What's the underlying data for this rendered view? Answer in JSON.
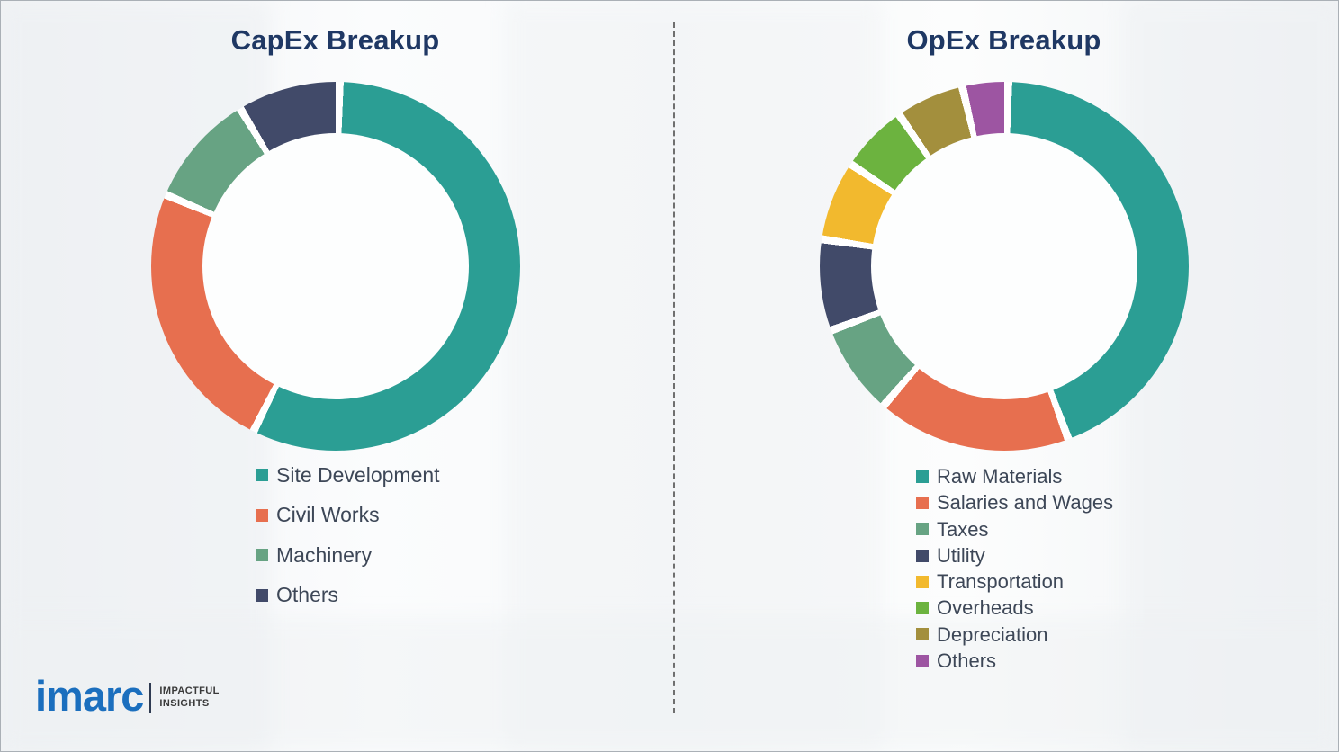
{
  "chart_data": [
    {
      "type": "pie",
      "subtype": "donut",
      "title": "CapEx Breakup",
      "labels": [
        "Site Development",
        "Civil Works",
        "Machinery",
        "Others"
      ],
      "values": [
        57,
        24,
        10,
        9
      ],
      "colors": [
        "#2b9e94",
        "#e76f4f",
        "#67a383",
        "#414a69"
      ],
      "units": "percent-share (estimated from arc angles)",
      "start_angle_deg": 0,
      "direction": "clockwise",
      "gap_deg": 2.5,
      "legend_position": "bottom"
    },
    {
      "type": "pie",
      "subtype": "donut",
      "title": "OpEx Breakup",
      "labels": [
        "Raw Materials",
        "Salaries and Wages",
        "Taxes",
        "Utility",
        "Transportation",
        "Overheads",
        "Depreciation",
        "Others"
      ],
      "values": [
        44,
        17,
        8,
        8,
        7,
        6,
        6,
        4
      ],
      "colors": [
        "#2b9e94",
        "#e76f4f",
        "#67a383",
        "#414a69",
        "#f2b92e",
        "#6cb33f",
        "#a38f3d",
        "#9d55a2"
      ],
      "units": "percent-share (estimated from arc angles)",
      "start_angle_deg": 0,
      "direction": "clockwise",
      "gap_deg": 2.5,
      "legend_position": "bottom"
    }
  ],
  "style": {
    "title_color": "#1f3864",
    "legend_text_color": "#3d4757",
    "divider_color": "#6f6f6f"
  },
  "logo": {
    "brand": "imarc",
    "tagline_line1": "IMPACTFUL",
    "tagline_line2": "INSIGHTS",
    "brand_color": "#1b6fbe"
  }
}
